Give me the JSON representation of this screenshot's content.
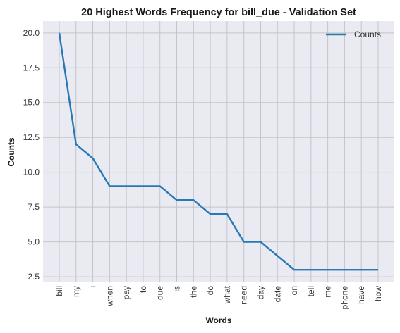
{
  "chart_data": {
    "type": "line",
    "title": "20 Highest Words Frequency for bill_due - Validation Set",
    "xlabel": "Words",
    "ylabel": "Counts",
    "categories": [
      "bill",
      "my",
      "i",
      "when",
      "pay",
      "to",
      "due",
      "is",
      "the",
      "do",
      "what",
      "need",
      "day",
      "date",
      "on",
      "tell",
      "me",
      "phone",
      "have",
      "how"
    ],
    "series": [
      {
        "name": "Counts",
        "values": [
          20,
          12,
          11,
          9,
          9,
          9,
          9,
          8,
          8,
          7,
          7,
          5,
          5,
          4,
          3,
          3,
          3,
          3,
          3,
          3
        ],
        "color": "#2878b5"
      }
    ],
    "yticks": [
      2.5,
      5.0,
      7.5,
      10.0,
      12.5,
      15.0,
      17.5,
      20.0
    ],
    "ytick_labels": [
      "2.5",
      "5.0",
      "7.5",
      "10.0",
      "12.5",
      "15.0",
      "17.5",
      "20.0"
    ],
    "ylim": [
      2.15,
      20.85
    ],
    "grid": true,
    "legend_position": "top-right",
    "colors": {
      "plot_background": "#eaeaf2",
      "grid": "#c4c4c8",
      "frame": "#cfcfd6"
    }
  }
}
